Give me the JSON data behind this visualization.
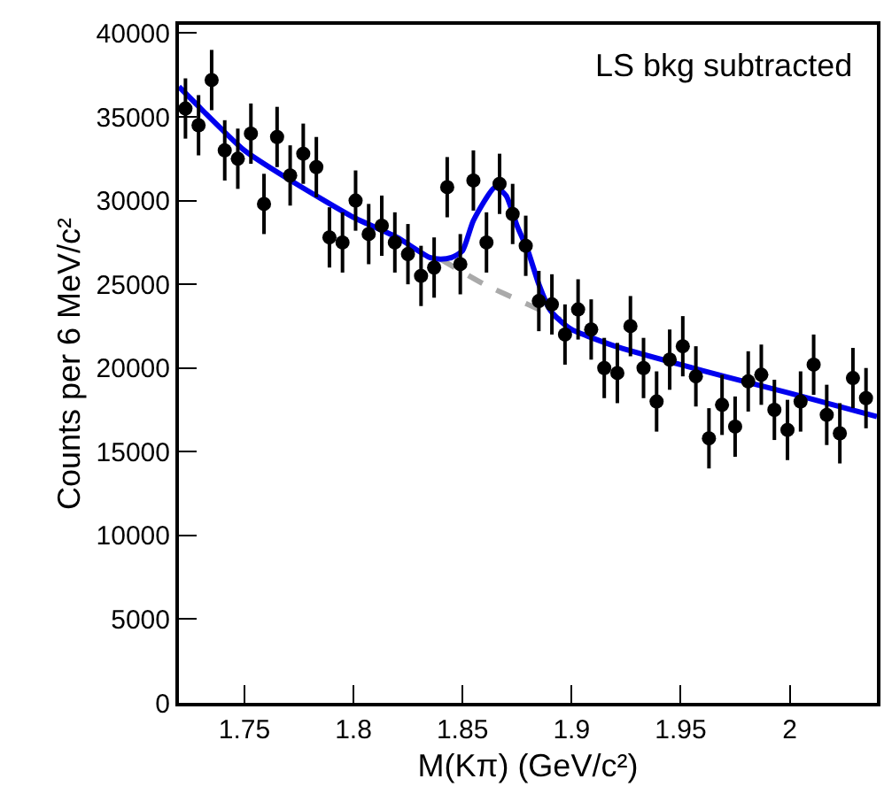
{
  "chart_data": {
    "type": "scatter",
    "xlabel": "M(Kπ) (GeV/c²)",
    "ylabel": "Counts per 6 MeV/c²",
    "annotations": [
      "LS bkg subtracted"
    ],
    "xlim": [
      1.72,
      2.04
    ],
    "xticks": [
      1.75,
      1.8,
      1.85,
      1.9,
      1.95,
      2
    ],
    "ylim": [
      0,
      40500
    ],
    "yticks": [
      0,
      5000,
      10000,
      15000,
      20000,
      25000,
      30000,
      35000,
      40000
    ],
    "grid": false,
    "series": [
      {
        "type": "line",
        "color": "#aaaaaa",
        "line_style": "dashed",
        "marker": "none",
        "x": [
          1.84,
          1.86,
          1.88,
          1.895
        ],
        "values": [
          26500,
          25000,
          23800,
          22900
        ]
      },
      {
        "type": "line",
        "color": "#0000ee",
        "line_style": "solid",
        "marker": "none",
        "x": [
          1.72,
          1.73,
          1.75,
          1.77,
          1.8,
          1.82,
          1.835,
          1.84,
          1.845,
          1.85,
          1.855,
          1.865,
          1.87,
          1.875,
          1.88,
          1.885,
          1.89,
          1.895,
          1.9,
          1.92,
          1.95,
          1.97,
          2.0,
          2.02,
          2.04
        ],
        "values": [
          36800,
          35500,
          33000,
          31300,
          29000,
          27800,
          26600,
          26500,
          26600,
          27000,
          28800,
          30800,
          30300,
          28500,
          27000,
          25000,
          23500,
          22800,
          22300,
          21300,
          20200,
          19500,
          18500,
          17800,
          17100
        ]
      },
      {
        "color": "#000000",
        "marker": "circle",
        "x": [
          1.723,
          1.729,
          1.735,
          1.741,
          1.747,
          1.753,
          1.759,
          1.765,
          1.771,
          1.777,
          1.783,
          1.789,
          1.795,
          1.801,
          1.807,
          1.813,
          1.819,
          1.825,
          1.831,
          1.837,
          1.843,
          1.849,
          1.855,
          1.861,
          1.867,
          1.873,
          1.879,
          1.885,
          1.891,
          1.897,
          1.903,
          1.909,
          1.915,
          1.921,
          1.927,
          1.933,
          1.939,
          1.945,
          1.951,
          1.957,
          1.963,
          1.969,
          1.975,
          1.981,
          1.987,
          1.993,
          1.999,
          2.005,
          2.011,
          2.017,
          2.023,
          2.029,
          2.035
        ],
        "values": [
          35500,
          34500,
          37200,
          33000,
          32500,
          34000,
          29800,
          33800,
          31500,
          32800,
          32000,
          27800,
          27500,
          30000,
          28000,
          28500,
          27500,
          26800,
          25500,
          26000,
          30800,
          26200,
          31200,
          27500,
          31000,
          29200,
          27300,
          24000,
          23800,
          22000,
          23500,
          22300,
          20000,
          19700,
          22500,
          20000,
          18000,
          20500,
          21300,
          19500,
          15800,
          17800,
          16500,
          19200,
          19600,
          17500,
          16300,
          18000,
          20200,
          17200,
          16100,
          19400,
          18200
        ],
        "errors": [
          1800,
          1800,
          1800,
          1800,
          1800,
          1800,
          1800,
          1800,
          1800,
          1800,
          1800,
          1800,
          1800,
          1800,
          1800,
          1800,
          1800,
          1800,
          1800,
          1800,
          1800,
          1800,
          1800,
          1800,
          1800,
          1800,
          1800,
          1800,
          1800,
          1800,
          1800,
          1800,
          1800,
          1800,
          1800,
          1800,
          1800,
          1800,
          1800,
          1800,
          1800,
          1800,
          1800,
          1800,
          1800,
          1800,
          1800,
          1800,
          1800,
          1800,
          1800,
          1800,
          1800
        ]
      }
    ]
  }
}
